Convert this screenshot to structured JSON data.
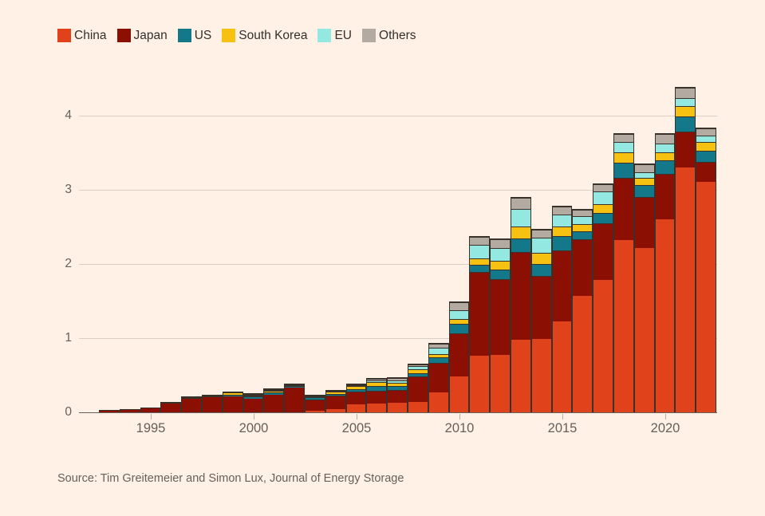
{
  "legend": [
    {
      "label": "China",
      "color": "#E0421C"
    },
    {
      "label": "Japan",
      "color": "#8C0F04"
    },
    {
      "label": "US",
      "color": "#13798A"
    },
    {
      "label": "South Korea",
      "color": "#F6C110"
    },
    {
      "label": "EU",
      "color": "#93E9E2"
    },
    {
      "label": "Others",
      "color": "#B3AAA2"
    }
  ],
  "source": "Source: Tim Greitemeier and Simon Lux, Journal of Energy Storage",
  "chart_data": {
    "type": "bar",
    "stacked": true,
    "title": "",
    "xlabel": "",
    "ylabel": "",
    "grid": true,
    "legend_position": "top",
    "ylim": [
      0,
      4.5
    ],
    "yticks": [
      0,
      1,
      2,
      3,
      4
    ],
    "xticks": [
      1995,
      2000,
      2005,
      2010,
      2015,
      2020
    ],
    "x": [
      1993,
      1994,
      1995,
      1996,
      1997,
      1998,
      1999,
      2000,
      2001,
      2002,
      2003,
      2004,
      2005,
      2006,
      2007,
      2008,
      2009,
      2010,
      2011,
      2012,
      2013,
      2014,
      2015,
      2016,
      2017,
      2018,
      2019,
      2020,
      2021,
      2022
    ],
    "series": [
      {
        "name": "China",
        "color": "#E0421C",
        "values": [
          0,
          0,
          0,
          0,
          0,
          0,
          0,
          0,
          0,
          0,
          0.02,
          0.04,
          0.11,
          0.12,
          0.13,
          0.14,
          0.27,
          0.48,
          0.76,
          0.77,
          0.98,
          0.99,
          1.23,
          1.57,
          1.78,
          2.32,
          2.21,
          2.6,
          3.3,
          3.11
        ]
      },
      {
        "name": "Japan",
        "color": "#8C0F04",
        "values": [
          0.02,
          0.03,
          0.05,
          0.12,
          0.18,
          0.2,
          0.22,
          0.18,
          0.24,
          0.33,
          0.15,
          0.19,
          0.17,
          0.17,
          0.17,
          0.34,
          0.4,
          0.58,
          1.13,
          1.03,
          1.18,
          0.85,
          0.95,
          0.76,
          0.77,
          0.84,
          0.69,
          0.61,
          0.48,
          0.27
        ]
      },
      {
        "name": "US",
        "color": "#13798A",
        "values": [
          0,
          0,
          0,
          0.01,
          0.01,
          0.01,
          0.02,
          0.03,
          0.03,
          0.03,
          0.03,
          0.02,
          0.03,
          0.07,
          0.05,
          0.05,
          0.07,
          0.13,
          0.1,
          0.12,
          0.18,
          0.16,
          0.2,
          0.11,
          0.14,
          0.21,
          0.16,
          0.19,
          0.21,
          0.15
        ]
      },
      {
        "name": "South Korea",
        "color": "#F6C110",
        "values": [
          0,
          0,
          0,
          0,
          0.01,
          0.01,
          0.03,
          0.02,
          0.02,
          0.01,
          0.01,
          0.03,
          0.04,
          0.05,
          0.05,
          0.05,
          0.04,
          0.07,
          0.08,
          0.12,
          0.16,
          0.15,
          0.12,
          0.1,
          0.12,
          0.14,
          0.1,
          0.11,
          0.14,
          0.12
        ]
      },
      {
        "name": "EU",
        "color": "#93E9E2",
        "values": [
          0,
          0,
          0,
          0,
          0,
          0,
          0,
          0.01,
          0.01,
          0,
          0,
          0,
          0.01,
          0.02,
          0.03,
          0.04,
          0.09,
          0.12,
          0.19,
          0.18,
          0.24,
          0.2,
          0.17,
          0.1,
          0.17,
          0.13,
          0.08,
          0.11,
          0.11,
          0.08
        ]
      },
      {
        "name": "Others",
        "color": "#B3AAA2",
        "values": [
          0,
          0,
          0,
          0,
          0,
          0,
          0,
          0.01,
          0.01,
          0.01,
          0.01,
          0.01,
          0.01,
          0.02,
          0.03,
          0.03,
          0.06,
          0.1,
          0.11,
          0.11,
          0.15,
          0.11,
          0.1,
          0.09,
          0.1,
          0.11,
          0.1,
          0.13,
          0.14,
          0.1
        ]
      }
    ]
  },
  "colors": {
    "background": "#FFF1E5",
    "bar_border": "#38322B",
    "gridline": "#DBCFC3",
    "axis_line": "#66605C",
    "text_dark": "#33302E",
    "text_muted": "#66605C"
  }
}
